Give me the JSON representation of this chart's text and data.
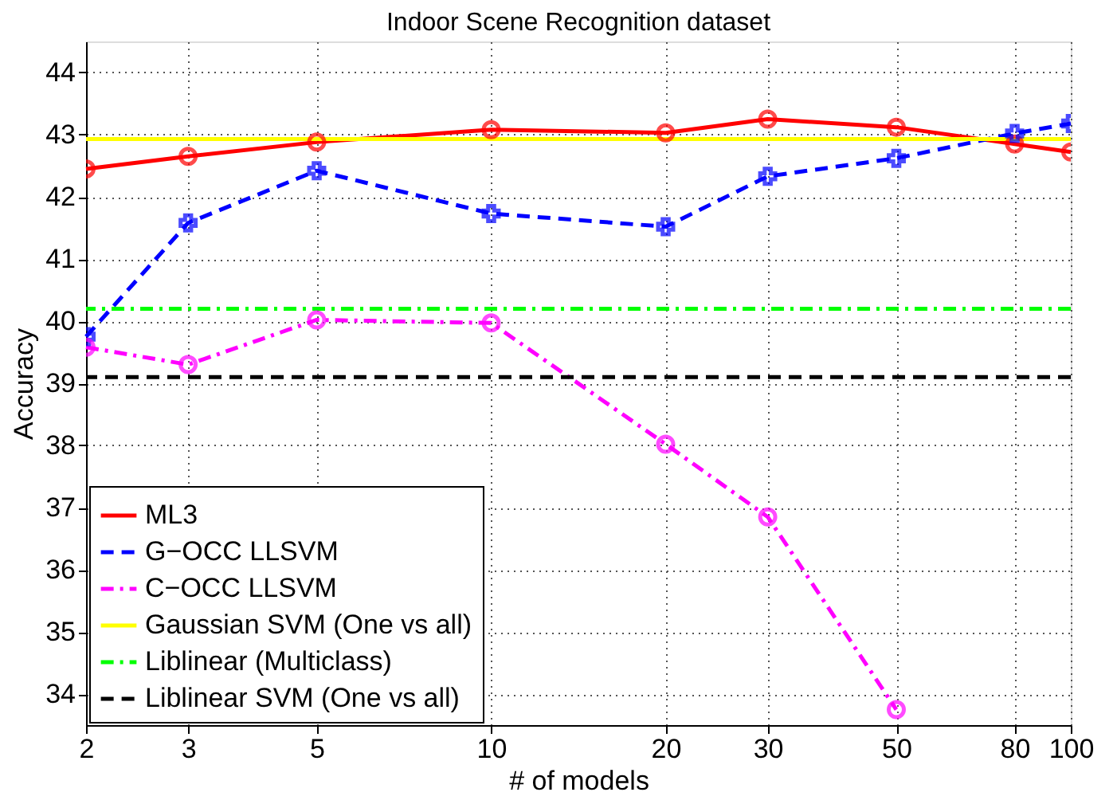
{
  "chart_data": {
    "type": "line",
    "title": "Indoor Scene Recognition dataset",
    "xlabel": "# of models",
    "ylabel": "Accuracy",
    "x": [
      2,
      3,
      5,
      10,
      20,
      30,
      50,
      80,
      100
    ],
    "log": "x",
    "xlim": [
      2,
      100
    ],
    "xticks": [
      2,
      3,
      5,
      10,
      20,
      30,
      50,
      80,
      100
    ],
    "ylim": [
      33.5,
      44.5
    ],
    "yticks": [
      34,
      35,
      36,
      37,
      38,
      39,
      40,
      41,
      42,
      43,
      44
    ],
    "grid": true,
    "legend": "bottom left",
    "series": [
      {
        "name": "ML3",
        "color": "#ff0000",
        "marker": "circle",
        "line_style": "solid",
        "values": [
          42.45,
          42.65,
          42.88,
          43.08,
          43.03,
          43.25,
          43.12,
          42.85,
          42.72
        ]
      },
      {
        "name": "G−OCC LLSVM",
        "color": "#0000ff",
        "marker": "cross",
        "line_style": "dashed",
        "values": [
          39.75,
          41.58,
          42.42,
          41.73,
          41.52,
          42.33,
          42.62,
          43.02,
          43.18
        ]
      },
      {
        "name": "C−OCC LLSVM",
        "color": "#ff00ff",
        "marker": "circle",
        "line_style": "dashdot",
        "values": [
          39.58,
          39.3,
          40.02,
          39.97,
          38.02,
          36.85,
          33.75,
          null,
          null
        ]
      }
    ],
    "ref_lines": [
      {
        "axis": "y",
        "value": 42.93,
        "label": "Gaussian SVM (One vs all)",
        "color": "#ffff00",
        "line_style": "solid"
      },
      {
        "axis": "y",
        "value": 40.2,
        "label": "Liblinear (Multiclass)",
        "color": "#00ff00",
        "line_style": "dashdot"
      },
      {
        "axis": "y",
        "value": 39.1,
        "label": "Liblinear SVM (One vs all)",
        "color": "#000000",
        "line_style": "dashed"
      }
    ]
  }
}
